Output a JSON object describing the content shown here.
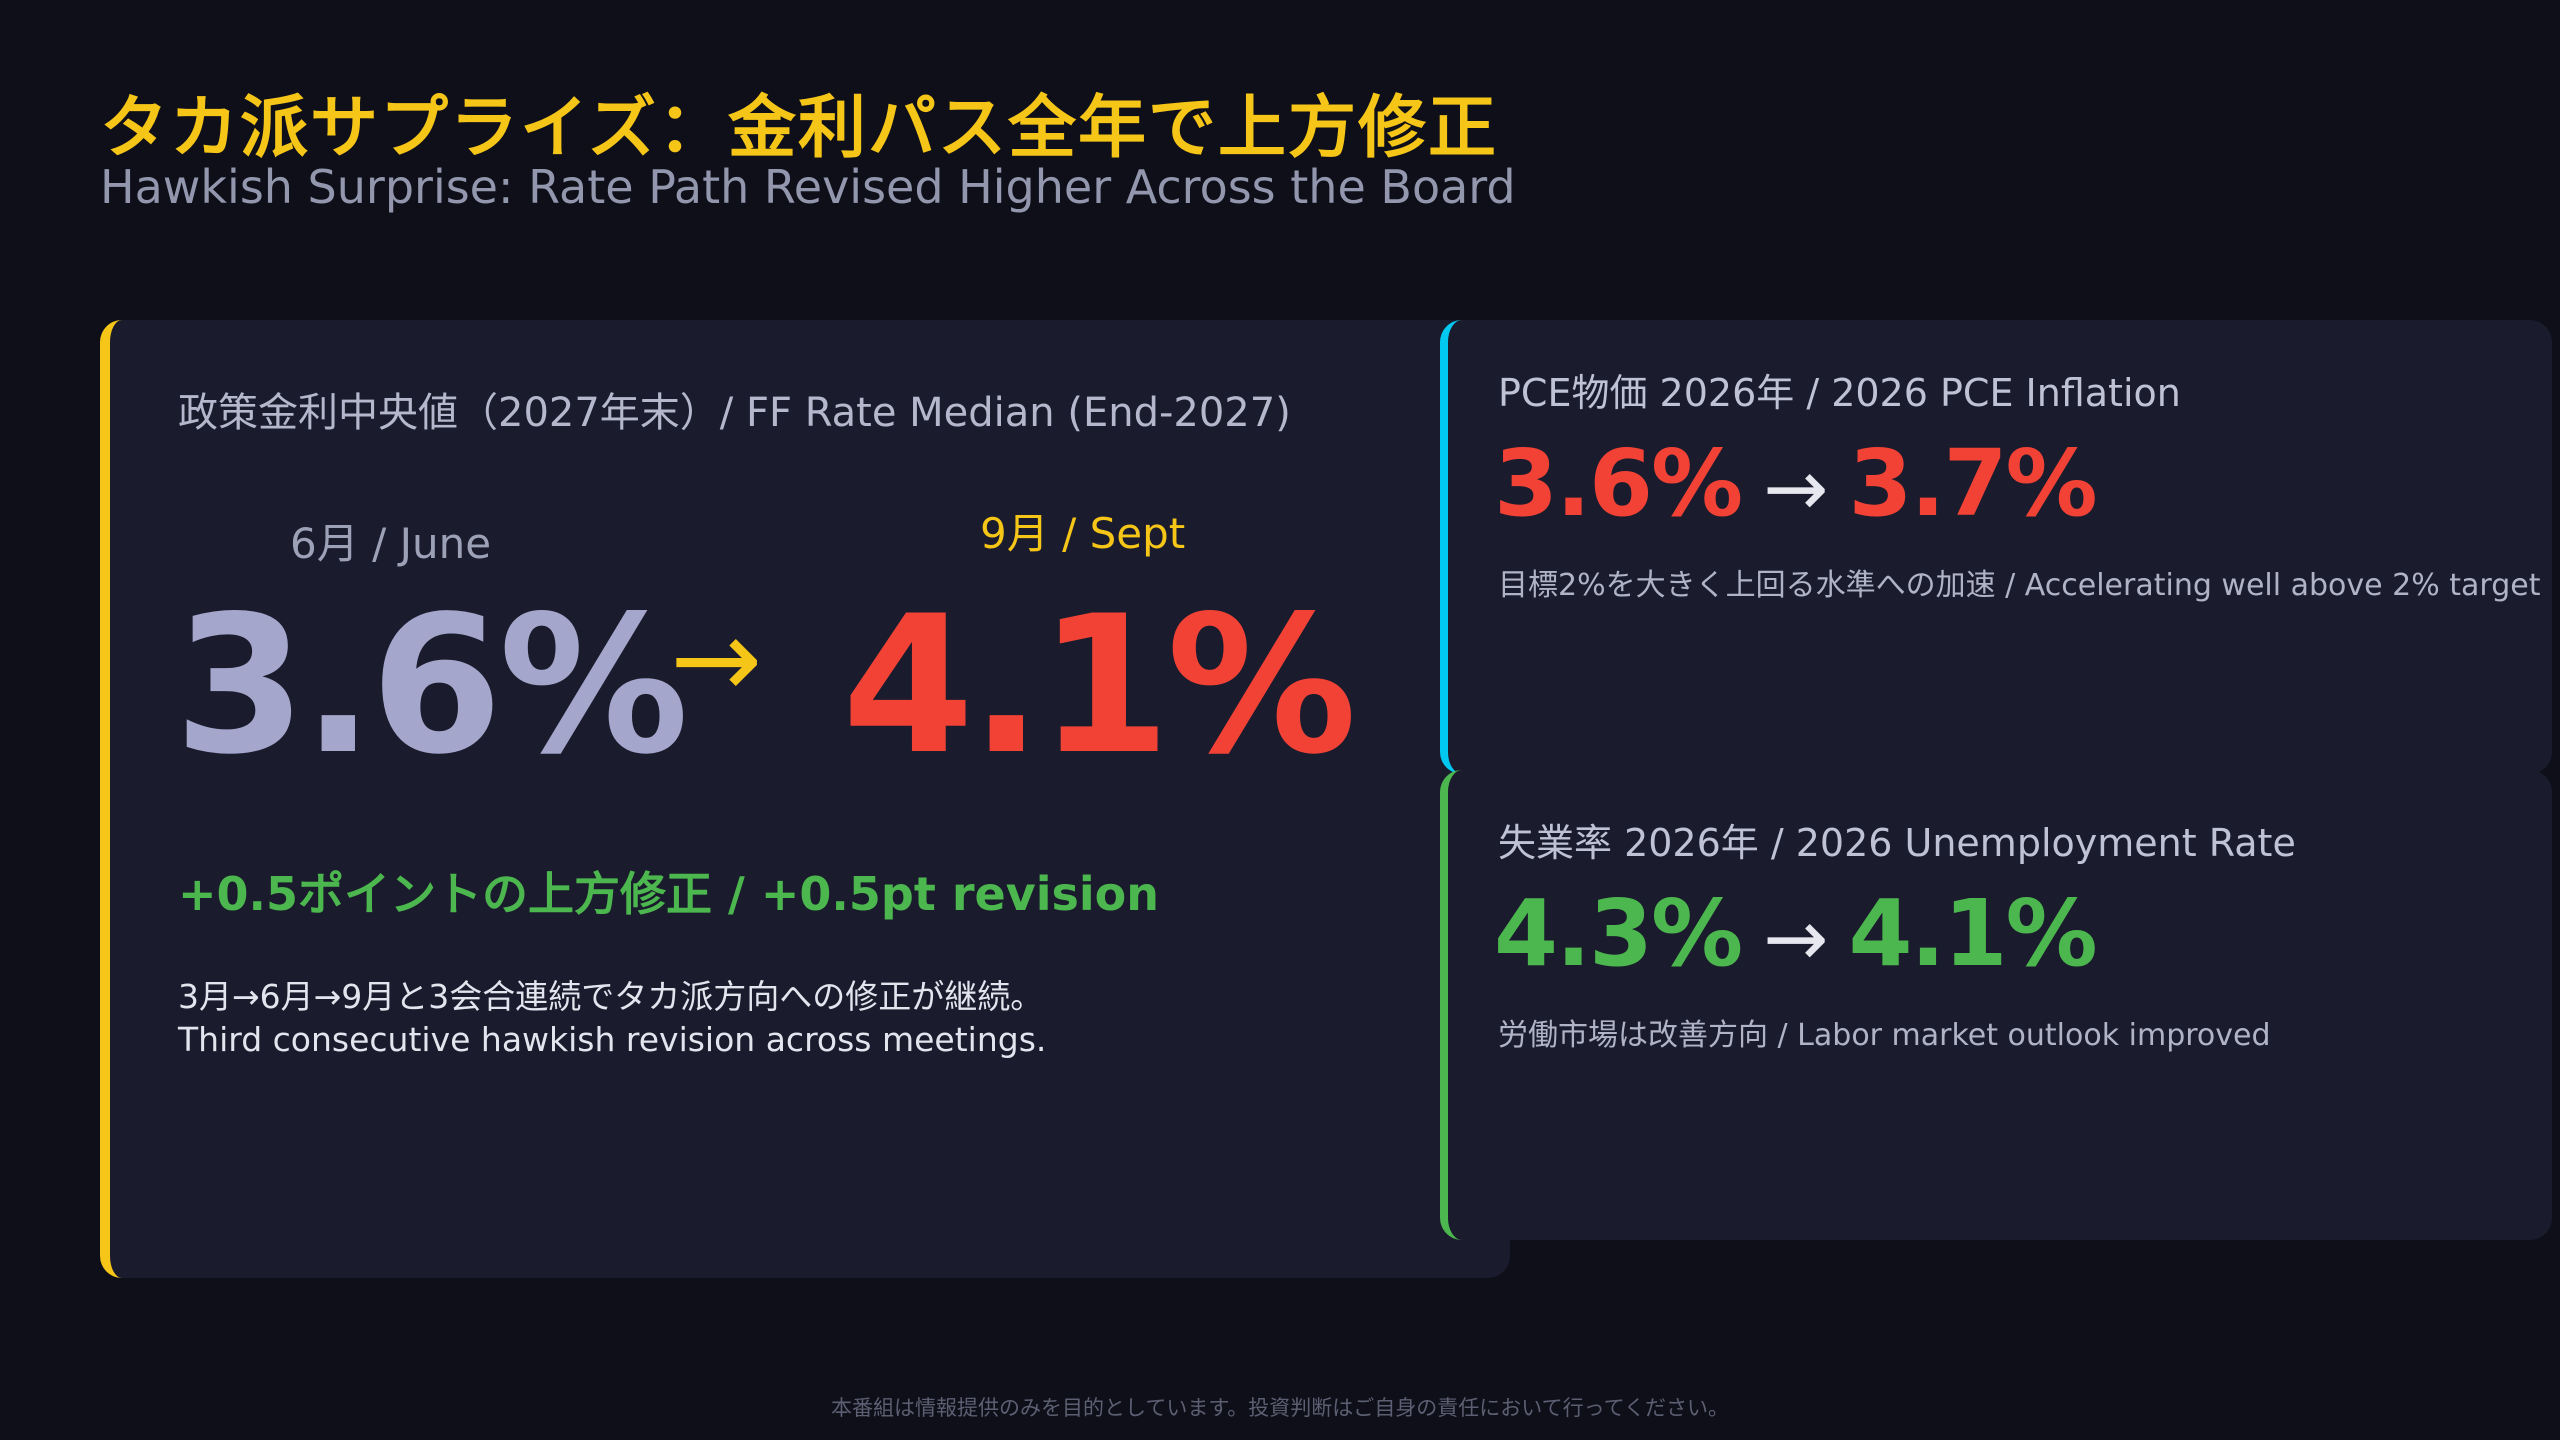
{
  "header": {
    "title": "タカ派サプライズ：金利パス全年で上方修正",
    "subtitle": "Hawkish Surprise: Rate Path Revised Higher Across the Board"
  },
  "main_card": {
    "label": "政策金利中央値（2027年末）/ FF Rate Median (End-2027)",
    "june_label": "6月 / June",
    "sept_label": "9月 / Sept",
    "june_value": "3.6%",
    "arrow": "→",
    "sept_value": "4.1%",
    "revision": "+0.5ポイントの上方修正 / +0.5pt revision",
    "note_jp": "3月→6月→9月と3会合連続でタカ派方向への修正が継続。",
    "note_en": "Third consecutive hawkish revision across meetings."
  },
  "pce_card": {
    "title": "PCE物価 2026年 / 2026 PCE Inflation",
    "from": "3.6%",
    "arrow": "→",
    "to": "3.7%",
    "desc": "目標2%を大きく上回る水準への加速 / Accelerating well above 2% target"
  },
  "unemployment_card": {
    "title": "失業率 2026年 / 2026 Unemployment Rate",
    "from": "4.3%",
    "arrow": "→",
    "to": "4.1%",
    "desc": "労働市場は改善方向 / Labor market outlook improved"
  },
  "footer": {
    "disclaimer": "本番組は情報提供のみを目的としています。投資判断はご自身の責任において行ってください。"
  },
  "colors": {
    "accent_yellow": "#f5c518",
    "accent_red": "#f24236",
    "accent_green": "#4cb74e",
    "accent_cyan": "#00c8f0",
    "background": "#0f0f1a",
    "card": "#1a1b2c"
  }
}
